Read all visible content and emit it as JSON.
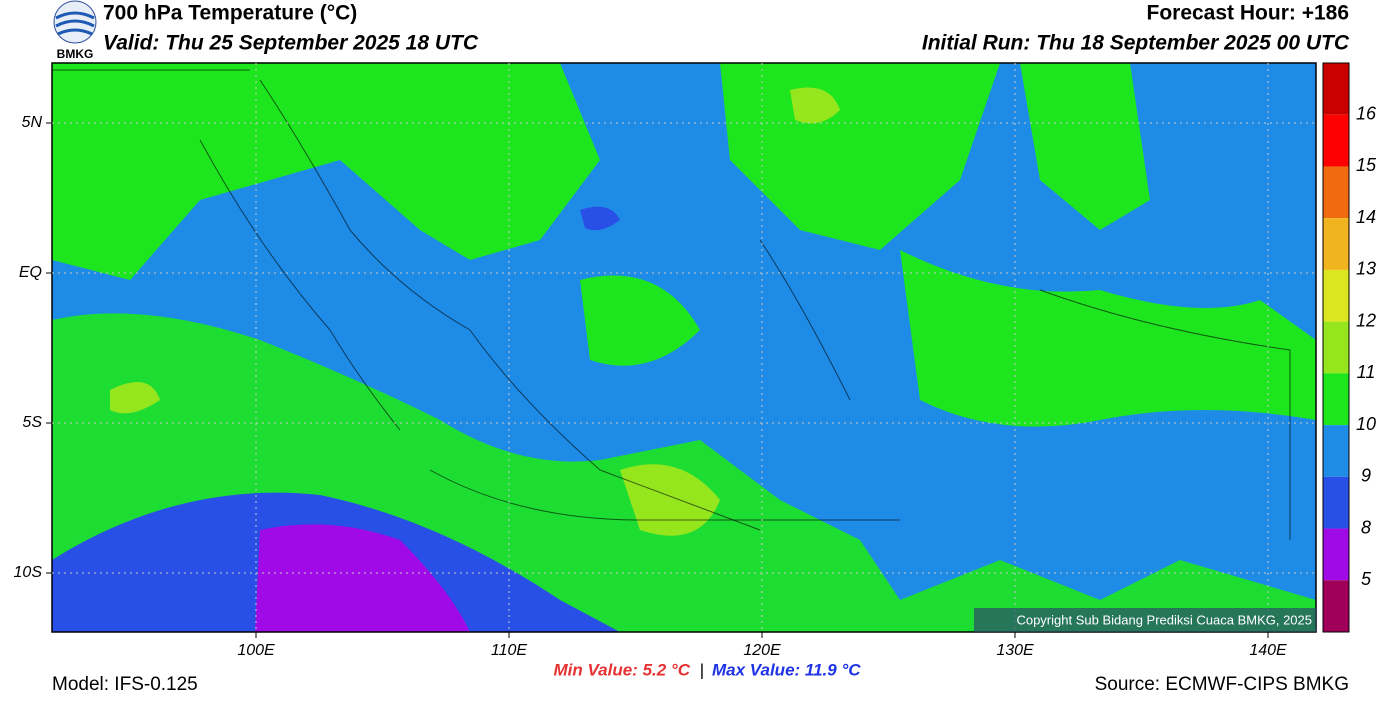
{
  "header": {
    "title": "700 hPa Temperature (°C)",
    "valid": "Valid: Thu 25 September 2025 18 UTC",
    "forecast_hour": "Forecast Hour: +186",
    "initial_run": "Initial Run: Thu 18 September 2025 00 UTC",
    "logo_text": "BMKG"
  },
  "map": {
    "lat_labels": [
      "5N",
      "EQ",
      "5S",
      "10S"
    ],
    "lon_labels": [
      "100E",
      "110E",
      "120E",
      "130E",
      "140E"
    ],
    "copyright": "Copyright Sub Bidang Prediksi Cuaca BMKG, 2025"
  },
  "colorbar": {
    "colors": [
      "#c80000",
      "#ff0000",
      "#f06a0f",
      "#f0b41e",
      "#dce61e",
      "#96e61e",
      "#1ee61e",
      "#1e8ce6",
      "#2850e6",
      "#a00ae6",
      "#a0005a"
    ],
    "labels": [
      "16",
      "15",
      "14",
      "13",
      "12",
      "11",
      "10",
      "9",
      "8",
      "5"
    ]
  },
  "footer": {
    "model": "Model: IFS-0.125",
    "min": "Min Value: 5.2 °C",
    "separator": "|",
    "max": "Max Value: 11.9 °C",
    "source": "Source: ECMWF-CIPS BMKG"
  }
}
